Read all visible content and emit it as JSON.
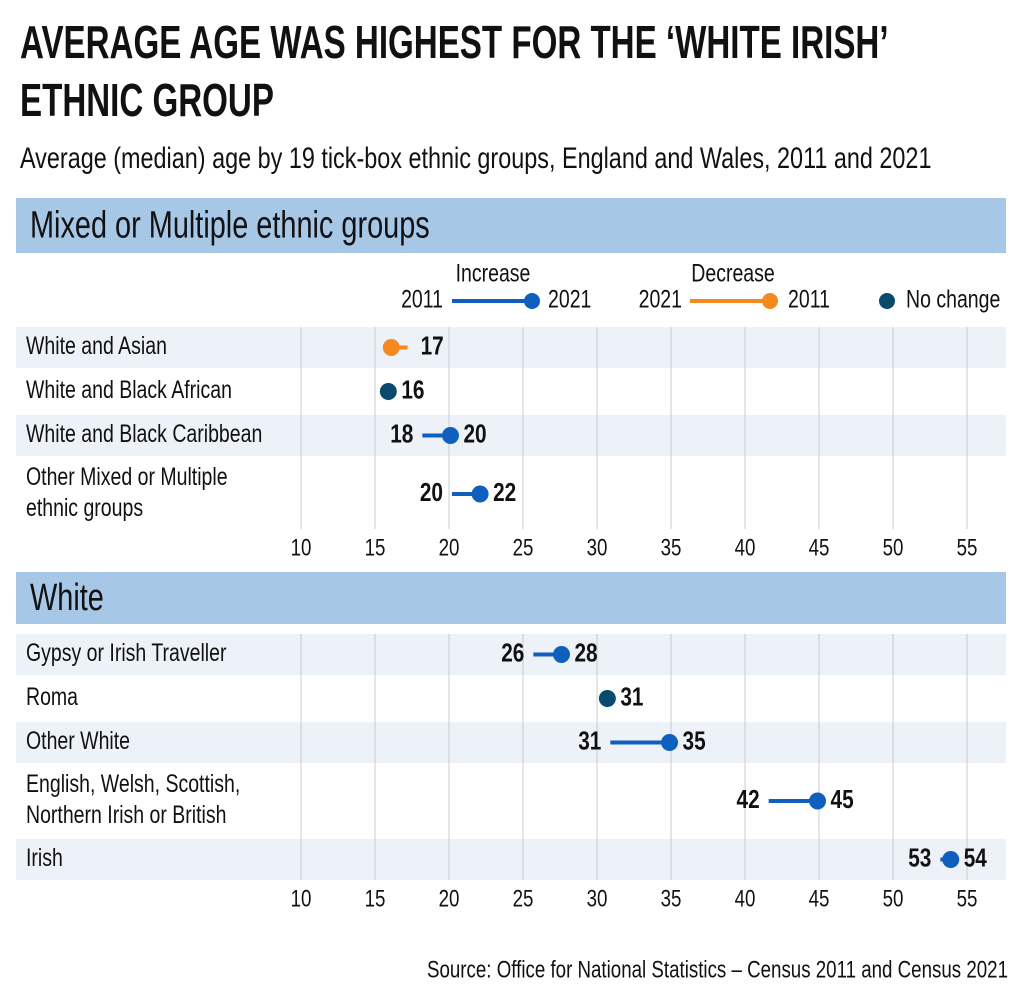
{
  "header": {
    "title": [
      "AVERAGE AGE WAS HIGHEST FOR THE ‘WHITE IRISH’",
      "ETHNIC GROUP"
    ],
    "subtitle": "Average (median) age by 19 tick-box ethnic groups, England and Wales, 2011 and 2021"
  },
  "source": "Source: Office for National Statistics – Census 2011 and Census 2021",
  "chart_data": [
    {
      "type": "dumbbell",
      "title": "Mixed or Multiple ethnic groups",
      "legend": {
        "increase": "Increase",
        "decrease": "Decrease",
        "no_change": "No change"
      },
      "colors": {
        "increase": "#0f5fbf",
        "decrease": "#f5891f",
        "no_change": "#0b4a6f"
      },
      "categories": [
        [
          "White and Asian"
        ],
        [
          "White and Black African"
        ],
        [
          "White and Black Caribbean"
        ],
        [
          "Other Mixed or Multiple",
          "ethnic groups"
        ]
      ],
      "series": [
        {
          "name": "2011",
          "values": [
            17.2,
            15.9,
            18.2,
            20.2
          ],
          "value_labels": [
            "17",
            null,
            "18",
            "20"
          ]
        },
        {
          "name": "2021",
          "values": [
            16.1,
            15.9,
            20.1,
            22.1
          ],
          "value_labels": [
            null,
            "16",
            "20",
            "22"
          ]
        }
      ],
      "xlim": [
        8,
        57.6
      ],
      "xticks": [
        10,
        15,
        20,
        25,
        30,
        35,
        40,
        45,
        50,
        55
      ],
      "grid": true
    },
    {
      "type": "dumbbell",
      "title": "White",
      "colors": {
        "increase": "#0f5fbf",
        "decrease": "#f5891f",
        "no_change": "#0b4a6f"
      },
      "categories": [
        [
          "Gypsy or Irish Traveller"
        ],
        [
          "Roma"
        ],
        [
          "Other White"
        ],
        [
          "English, Welsh, Scottish,",
          "Northern Irish or British"
        ],
        [
          "Irish"
        ]
      ],
      "series": [
        {
          "values": [
            25.7,
            30.7,
            30.9,
            41.6,
            53.2
          ],
          "value_labels": [
            "26",
            null,
            "31",
            "42",
            "53"
          ]
        },
        {
          "values": [
            27.6,
            30.7,
            34.9,
            44.9,
            53.9
          ],
          "value_labels": [
            "28",
            "31",
            "35",
            "45",
            "54"
          ]
        }
      ],
      "xlim": [
        8,
        57.6
      ],
      "xticks": [
        10,
        15,
        20,
        25,
        30,
        35,
        40,
        45,
        50,
        55
      ],
      "grid": true
    }
  ]
}
